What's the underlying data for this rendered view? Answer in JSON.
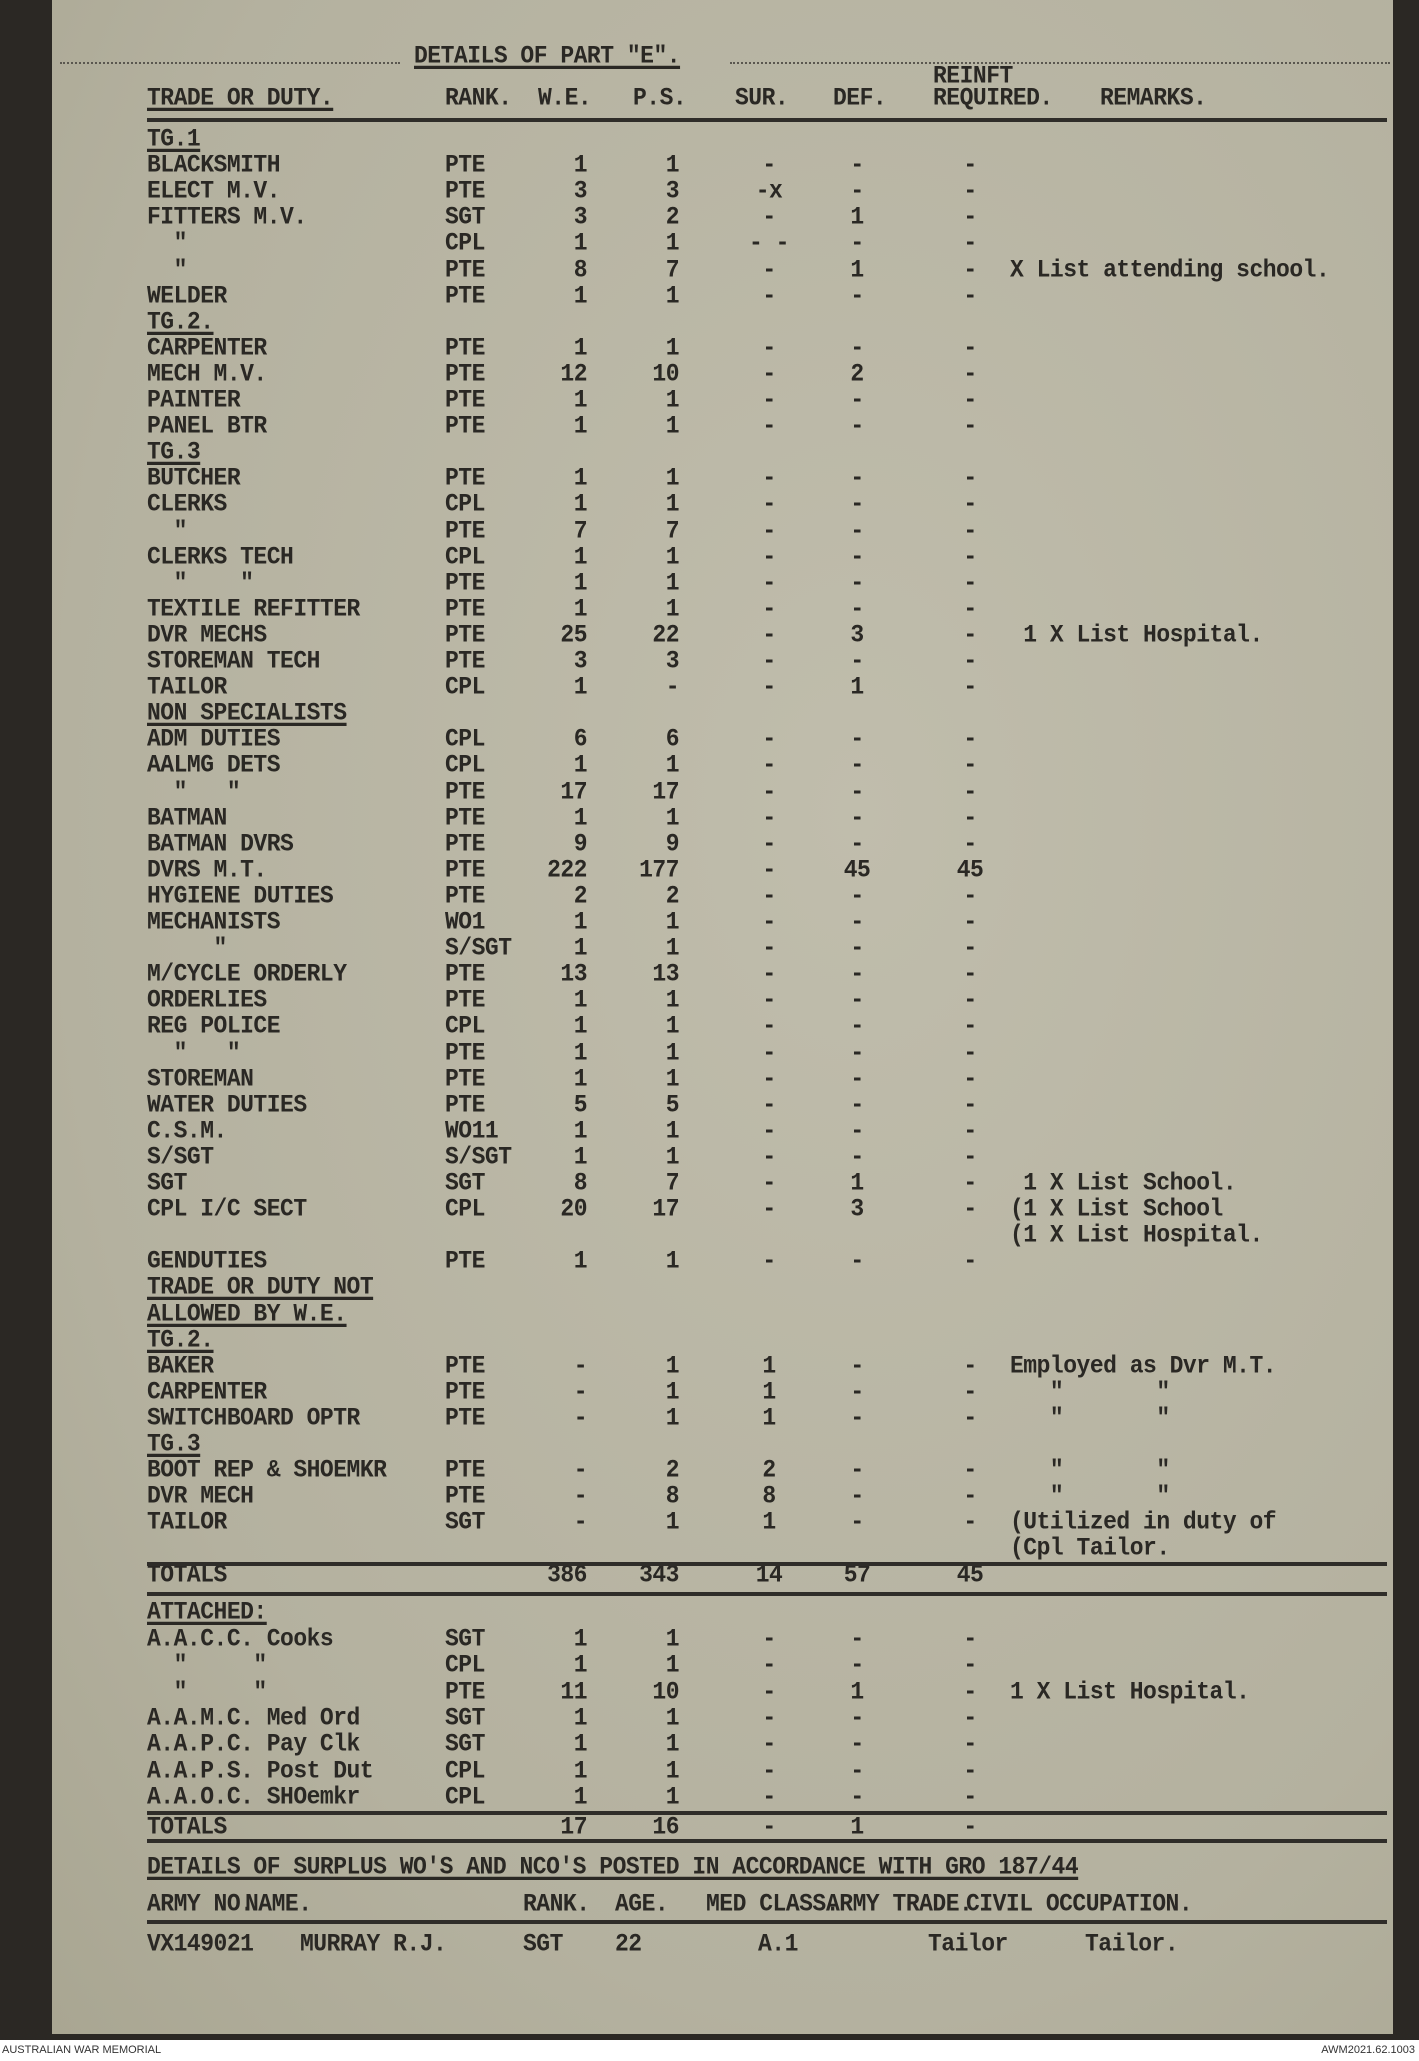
{
  "title": "DETAILS OF PART \"E\".",
  "headers": {
    "trade": "TRADE OR DUTY.",
    "rank": "RANK.",
    "we": "W.E.",
    "ps": "P.S.",
    "sur": "SUR.",
    "def": "DEF.",
    "reinft_top": "REINFT",
    "reinft": "REQUIRED.",
    "remarks": "REMARKS."
  },
  "rows": [
    {
      "trade": "TG.1",
      "heading": true
    },
    {
      "trade": "BLACKSMITH",
      "rank": "PTE",
      "we": "1",
      "ps": "1",
      "sur": "-",
      "def": "-",
      "reinf": "-"
    },
    {
      "trade": "ELECT M.V.",
      "rank": "PTE",
      "we": "3",
      "ps": "3",
      "sur": "-x",
      "def": "-",
      "reinf": "-"
    },
    {
      "trade": "FITTERS M.V.",
      "rank": "SGT",
      "we": "3",
      "ps": "2",
      "sur": "-",
      "def": "1",
      "reinf": "-"
    },
    {
      "trade": "  \"",
      "rank": "CPL",
      "we": "1",
      "ps": "1",
      "sur": "- -",
      "def": "-",
      "reinf": "-"
    },
    {
      "trade": "  \"",
      "rank": "PTE",
      "we": "8",
      "ps": "7",
      "sur": "-",
      "def": "1",
      "reinf": "-",
      "remarks": "X List attending school."
    },
    {
      "trade": "WELDER",
      "rank": "PTE",
      "we": "1",
      "ps": "1",
      "sur": "-",
      "def": "-",
      "reinf": "-"
    },
    {
      "trade": "TG.2.",
      "heading": true
    },
    {
      "trade": "CARPENTER",
      "rank": "PTE",
      "we": "1",
      "ps": "1",
      "sur": "-",
      "def": "-",
      "reinf": "-"
    },
    {
      "trade": "MECH M.V.",
      "rank": "PTE",
      "we": "12",
      "ps": "10",
      "sur": "-",
      "def": "2",
      "reinf": "-"
    },
    {
      "trade": "PAINTER",
      "rank": "PTE",
      "we": "1",
      "ps": "1",
      "sur": "-",
      "def": "-",
      "reinf": "-"
    },
    {
      "trade": "PANEL BTR",
      "rank": "PTE",
      "we": "1",
      "ps": "1",
      "sur": "-",
      "def": "-",
      "reinf": "-"
    },
    {
      "trade": "TG.3",
      "heading": true
    },
    {
      "trade": "BUTCHER",
      "rank": "PTE",
      "we": "1",
      "ps": "1",
      "sur": "-",
      "def": "-",
      "reinf": "-"
    },
    {
      "trade": "CLERKS",
      "rank": "CPL",
      "we": "1",
      "ps": "1",
      "sur": "-",
      "def": "-",
      "reinf": "-"
    },
    {
      "trade": "  \"",
      "rank": "PTE",
      "we": "7",
      "ps": "7",
      "sur": "-",
      "def": "-",
      "reinf": "-"
    },
    {
      "trade": "CLERKS TECH",
      "rank": "CPL",
      "we": "1",
      "ps": "1",
      "sur": "-",
      "def": "-",
      "reinf": "-"
    },
    {
      "trade": "  \"    \"",
      "rank": "PTE",
      "we": "1",
      "ps": "1",
      "sur": "-",
      "def": "-",
      "reinf": "-"
    },
    {
      "trade": "TEXTILE REFITTER",
      "rank": "PTE",
      "we": "1",
      "ps": "1",
      "sur": "-",
      "def": "-",
      "reinf": "-"
    },
    {
      "trade": "DVR MECHS",
      "rank": "PTE",
      "we": "25",
      "ps": "22",
      "sur": "-",
      "def": "3",
      "reinf": "-",
      "remarks": " 1 X List Hospital."
    },
    {
      "trade": "STOREMAN TECH",
      "rank": "PTE",
      "we": "3",
      "ps": "3",
      "sur": "-",
      "def": "-",
      "reinf": "-"
    },
    {
      "trade": "TAILOR",
      "rank": "CPL",
      "we": "1",
      "ps": "-",
      "sur": "-",
      "def": "1",
      "reinf": "-"
    },
    {
      "trade": "NON SPECIALISTS",
      "heading": true
    },
    {
      "trade": "ADM DUTIES",
      "rank": "CPL",
      "we": "6",
      "ps": "6",
      "sur": "-",
      "def": "-",
      "reinf": "-"
    },
    {
      "trade": "AALMG DETS",
      "rank": "CPL",
      "we": "1",
      "ps": "1",
      "sur": "-",
      "def": "-",
      "reinf": "-"
    },
    {
      "trade": "  \"   \"",
      "rank": "PTE",
      "we": "17",
      "ps": "17",
      "sur": "-",
      "def": "-",
      "reinf": "-"
    },
    {
      "trade": "BATMAN",
      "rank": "PTE",
      "we": "1",
      "ps": "1",
      "sur": "-",
      "def": "-",
      "reinf": "-"
    },
    {
      "trade": "BATMAN DVRS",
      "rank": "PTE",
      "we": "9",
      "ps": "9",
      "sur": "-",
      "def": "-",
      "reinf": "-"
    },
    {
      "trade": "DVRS M.T.",
      "rank": "PTE",
      "we": "222",
      "ps": "177",
      "sur": "-",
      "def": "45",
      "reinf": "45"
    },
    {
      "trade": "HYGIENE DUTIES",
      "rank": "PTE",
      "we": "2",
      "ps": "2",
      "sur": "-",
      "def": "-",
      "reinf": "-"
    },
    {
      "trade": "MECHANISTS",
      "rank": "WO1",
      "we": "1",
      "ps": "1",
      "sur": "-",
      "def": "-",
      "reinf": "-"
    },
    {
      "trade": "     \"",
      "rank": "S/SGT",
      "we": "1",
      "ps": "1",
      "sur": "-",
      "def": "-",
      "reinf": "-"
    },
    {
      "trade": "M/CYCLE ORDERLY",
      "rank": "PTE",
      "we": "13",
      "ps": "13",
      "sur": "-",
      "def": "-",
      "reinf": "-"
    },
    {
      "trade": "ORDERLIES",
      "rank": "PTE",
      "we": "1",
      "ps": "1",
      "sur": "-",
      "def": "-",
      "reinf": "-"
    },
    {
      "trade": "REG POLICE",
      "rank": "CPL",
      "we": "1",
      "ps": "1",
      "sur": "-",
      "def": "-",
      "reinf": "-"
    },
    {
      "trade": "  \"   \"",
      "rank": "PTE",
      "we": "1",
      "ps": "1",
      "sur": "-",
      "def": "-",
      "reinf": "-"
    },
    {
      "trade": "STOREMAN",
      "rank": "PTE",
      "we": "1",
      "ps": "1",
      "sur": "-",
      "def": "-",
      "reinf": "-"
    },
    {
      "trade": "WATER DUTIES",
      "rank": "PTE",
      "we": "5",
      "ps": "5",
      "sur": "-",
      "def": "-",
      "reinf": "-"
    },
    {
      "trade": "C.S.M.",
      "rank": "WO11",
      "we": "1",
      "ps": "1",
      "sur": "-",
      "def": "-",
      "reinf": "-"
    },
    {
      "trade": "S/SGT",
      "rank": "S/SGT",
      "we": "1",
      "ps": "1",
      "sur": "-",
      "def": "-",
      "reinf": "-"
    },
    {
      "trade": "SGT",
      "rank": "SGT",
      "we": "8",
      "ps": "7",
      "sur": "-",
      "def": "1",
      "reinf": "-",
      "remarks": " 1 X List School."
    },
    {
      "trade": "CPL I/C SECT",
      "rank": "CPL",
      "we": "20",
      "ps": "17",
      "sur": "-",
      "def": "3",
      "reinf": "-",
      "remarks": "(1 X List School"
    },
    {
      "trade": "",
      "remarks": "(1 X List Hospital."
    },
    {
      "trade": "GENDUTIES",
      "rank": "PTE",
      "we": "1",
      "ps": "1",
      "sur": "-",
      "def": "-",
      "reinf": "-"
    },
    {
      "trade": "TRADE OR DUTY NOT",
      "heading": true
    },
    {
      "trade": "ALLOWED BY W.E.",
      "heading": true
    },
    {
      "trade": "TG.2.",
      "heading": true
    },
    {
      "trade": "BAKER",
      "rank": "PTE",
      "we": "-",
      "ps": "1",
      "sur": "1",
      "def": "-",
      "reinf": "-",
      "remarks": "Employed as Dvr M.T."
    },
    {
      "trade": "CARPENTER",
      "rank": "PTE",
      "we": "-",
      "ps": "1",
      "sur": "1",
      "def": "-",
      "reinf": "-",
      "remarks": "   \"       \""
    },
    {
      "trade": "SWITCHBOARD OPTR",
      "rank": "PTE",
      "we": "-",
      "ps": "1",
      "sur": "1",
      "def": "-",
      "reinf": "-",
      "remarks": "   \"       \""
    },
    {
      "trade": "TG.3",
      "heading": true
    },
    {
      "trade": "BOOT REP & SHOEMKR",
      "rank": "PTE",
      "we": "-",
      "ps": "2",
      "sur": "2",
      "def": "-",
      "reinf": "-",
      "remarks": "   \"       \""
    },
    {
      "trade": "DVR MECH",
      "rank": "PTE",
      "we": "-",
      "ps": "8",
      "sur": "8",
      "def": "-",
      "reinf": "-",
      "remarks": "   \"       \""
    },
    {
      "trade": "TAILOR",
      "rank": "SGT",
      "we": "-",
      "ps": "1",
      "sur": "1",
      "def": "-",
      "reinf": "-",
      "remarks": "(Utilized in duty of"
    },
    {
      "trade": "",
      "remarks": "(Cpl Tailor."
    },
    {
      "trade": "TOTALS",
      "we": "386",
      "ps": "343",
      "sur": "14",
      "def": "57",
      "reinf": "45"
    }
  ],
  "attached": {
    "heading": "ATTACHED:",
    "rows": [
      {
        "trade": "A.A.C.C. Cooks",
        "rank": "SGT",
        "we": "1",
        "ps": "1",
        "sur": "-",
        "def": "-",
        "reinf": "-"
      },
      {
        "trade": "  \"     \"",
        "rank": "CPL",
        "we": "1",
        "ps": "1",
        "sur": "-",
        "def": "-",
        "reinf": "-"
      },
      {
        "trade": "  \"     \"",
        "rank": "PTE",
        "we": "11",
        "ps": "10",
        "sur": "-",
        "def": "1",
        "reinf": "-",
        "remarks": "1 X List Hospital."
      },
      {
        "trade": "A.A.M.C. Med Ord",
        "rank": "SGT",
        "we": "1",
        "ps": "1",
        "sur": "-",
        "def": "-",
        "reinf": "-"
      },
      {
        "trade": "A.A.P.C. Pay Clk",
        "rank": "SGT",
        "we": "1",
        "ps": "1",
        "sur": "-",
        "def": "-",
        "reinf": "-"
      },
      {
        "trade": "A.A.P.S. Post Dut",
        "rank": "CPL",
        "we": "1",
        "ps": "1",
        "sur": "-",
        "def": "-",
        "reinf": "-"
      },
      {
        "trade": "A.A.O.C. SHOemkr",
        "rank": "CPL",
        "we": "1",
        "ps": "1",
        "sur": "-",
        "def": "-",
        "reinf": "-"
      }
    ],
    "totals": {
      "trade": "TOTALS",
      "we": "17",
      "ps": "16",
      "sur": "-",
      "def": "1",
      "reinf": "-"
    }
  },
  "surplus": {
    "heading": "DETAILS OF SURPLUS WO'S AND NCO'S POSTED IN ACCORDANCE WITH GRO 187/44",
    "headers": [
      "ARMY NO.",
      "NAME.",
      "RANK.",
      "AGE.",
      "MED CLASS.",
      "ARMY TRADE.",
      "CIVIL OCCUPATION."
    ],
    "rows": [
      [
        "VX149021",
        "MURRAY R.J.",
        "SGT",
        "22",
        "A.1",
        "Tailor",
        "Tailor."
      ]
    ]
  },
  "footer": {
    "left": "AUSTRALIAN WAR MEMORIAL",
    "right": "AWM2021.62.1003"
  }
}
